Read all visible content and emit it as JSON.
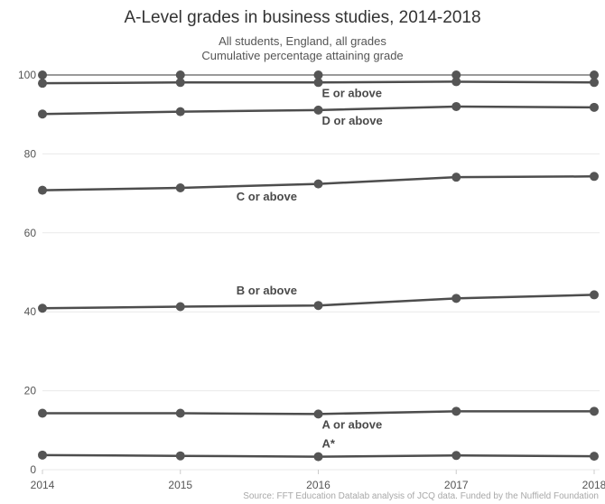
{
  "chart_data": {
    "type": "line",
    "title": "A-Level grades in business studies, 2014-2018",
    "subtitle_lines": [
      "All students, England, all grades",
      "Cumulative percentage attaining grade"
    ],
    "source": "Source: FFT Education Datalab analysis of JCQ data. Funded by the Nuffield Foundation",
    "x": [
      2014,
      2015,
      2016,
      2017,
      2018
    ],
    "x_tick_labels": [
      "2014",
      "2015",
      "2016",
      "2017",
      "2018"
    ],
    "y_ticks": [
      0,
      20,
      40,
      60,
      80,
      100
    ],
    "y_tick_labels": [
      "0",
      "20",
      "40",
      "60",
      "80",
      "100"
    ],
    "ylim": [
      0,
      100
    ],
    "grid": true,
    "colors": {
      "line": "#4d4d4d",
      "top_line": "#9a9a9a",
      "grid": "#e9e9e9"
    },
    "series": [
      {
        "name": "",
        "values": [
          100,
          100,
          100,
          100,
          100
        ]
      },
      {
        "name": "E or above",
        "values": [
          97.9,
          98.1,
          98.1,
          98.3,
          98.1
        ]
      },
      {
        "name": "D or above",
        "values": [
          90.1,
          90.7,
          91.1,
          92.0,
          91.8
        ]
      },
      {
        "name": "C or above",
        "values": [
          70.8,
          71.4,
          72.4,
          74.1,
          74.3
        ]
      },
      {
        "name": "B or above",
        "values": [
          40.9,
          41.3,
          41.6,
          43.4,
          44.3
        ]
      },
      {
        "name": "A or above",
        "values": [
          14.3,
          14.3,
          14.1,
          14.8,
          14.8
        ]
      },
      {
        "name": "A*",
        "values": [
          3.7,
          3.5,
          3.3,
          3.6,
          3.4
        ]
      }
    ]
  }
}
